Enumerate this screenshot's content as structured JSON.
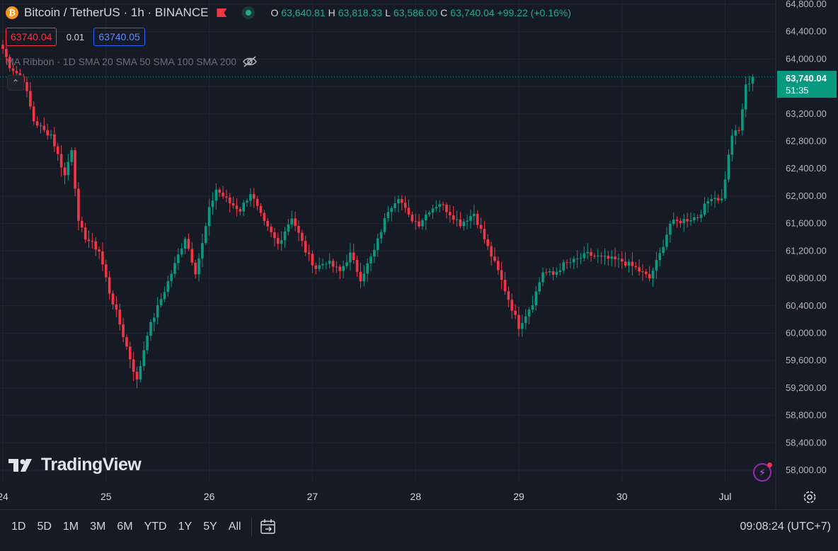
{
  "header": {
    "coin_letter": "₿",
    "symbol": "Bitcoin / TetherUS · 1h · BINANCE",
    "ohlc": [
      {
        "k": "O",
        "v": "63,640.81"
      },
      {
        "k": "H",
        "v": "63,818.33"
      },
      {
        "k": "L",
        "v": "63,586.00"
      },
      {
        "k": "C",
        "v": "63,740.04"
      }
    ],
    "change": "+99.22 (+0.16%)"
  },
  "quote": {
    "sell": "63740.04",
    "spread": "0.01",
    "buy": "63740.05"
  },
  "indicator": {
    "label": "MA Ribbon · 1D SMA 20 SMA 50 SMA 100 SMA 200"
  },
  "collapse_glyph": "⌃",
  "last_price": {
    "price": "63,740.04",
    "countdown": "51:35"
  },
  "brand": {
    "name": "TradingView"
  },
  "bottom_bar": {
    "ranges": [
      "1D",
      "5D",
      "1M",
      "3M",
      "6M",
      "YTD",
      "1Y",
      "5Y",
      "All"
    ],
    "clock": "09:08:24 (UTC+7)"
  },
  "colors": {
    "up": "#089981",
    "down": "#f23645",
    "bg": "#161a25",
    "grid": "#232632",
    "axis_text": "#b2b5be"
  },
  "chart_data": {
    "type": "candlestick",
    "ylim": [
      58000,
      64800
    ],
    "y_ticks": [
      "64,800.00",
      "64,400.00",
      "64,000.00",
      "63,600.00",
      "63,200.00",
      "62,800.00",
      "62,400.00",
      "62,000.00",
      "61,600.00",
      "61,200.00",
      "60,800.00",
      "60,400.00",
      "60,000.00",
      "59,600.00",
      "59,200.00",
      "58,800.00",
      "58,400.00",
      "58,000.00"
    ],
    "x_ticks": [
      "24",
      "25",
      "26",
      "27",
      "28",
      "29",
      "30",
      "Jul"
    ],
    "waypoints": [
      [
        0,
        64150
      ],
      [
        2,
        63900
      ],
      [
        6,
        63700
      ],
      [
        9,
        63100
      ],
      [
        12,
        62950
      ],
      [
        14,
        62900
      ],
      [
        18,
        62300
      ],
      [
        20,
        62700
      ],
      [
        22,
        61600
      ],
      [
        24,
        61400
      ],
      [
        28,
        61200
      ],
      [
        31,
        60600
      ],
      [
        33,
        60300
      ],
      [
        36,
        59800
      ],
      [
        39,
        59300
      ],
      [
        42,
        60000
      ],
      [
        46,
        60500
      ],
      [
        50,
        61000
      ],
      [
        53,
        61400
      ],
      [
        56,
        60900
      ],
      [
        58,
        61300
      ],
      [
        60,
        61800
      ],
      [
        62,
        62100
      ],
      [
        66,
        61900
      ],
      [
        69,
        61800
      ],
      [
        72,
        62050
      ],
      [
        76,
        61600
      ],
      [
        80,
        61300
      ],
      [
        84,
        61700
      ],
      [
        88,
        61200
      ],
      [
        91,
        60950
      ],
      [
        94,
        61050
      ],
      [
        98,
        60900
      ],
      [
        101,
        61150
      ],
      [
        104,
        60800
      ],
      [
        108,
        61200
      ],
      [
        112,
        61800
      ],
      [
        115,
        62000
      ],
      [
        118,
        61700
      ],
      [
        121,
        61600
      ],
      [
        124,
        61800
      ],
      [
        127,
        61900
      ],
      [
        130,
        61750
      ],
      [
        133,
        61600
      ],
      [
        137,
        61750
      ],
      [
        141,
        61250
      ],
      [
        144,
        60900
      ],
      [
        147,
        60500
      ],
      [
        150,
        60100
      ],
      [
        154,
        60450
      ],
      [
        157,
        60900
      ],
      [
        160,
        60850
      ],
      [
        163,
        61000
      ],
      [
        166,
        61050
      ],
      [
        170,
        61150
      ],
      [
        174,
        61100
      ],
      [
        180,
        61050
      ],
      [
        184,
        60950
      ],
      [
        188,
        60800
      ],
      [
        191,
        61150
      ],
      [
        194,
        61600
      ],
      [
        198,
        61650
      ],
      [
        202,
        61700
      ],
      [
        206,
        62000
      ],
      [
        209,
        61950
      ],
      [
        212,
        62900
      ],
      [
        214,
        62950
      ],
      [
        216,
        63600
      ],
      [
        218,
        63740
      ]
    ]
  }
}
